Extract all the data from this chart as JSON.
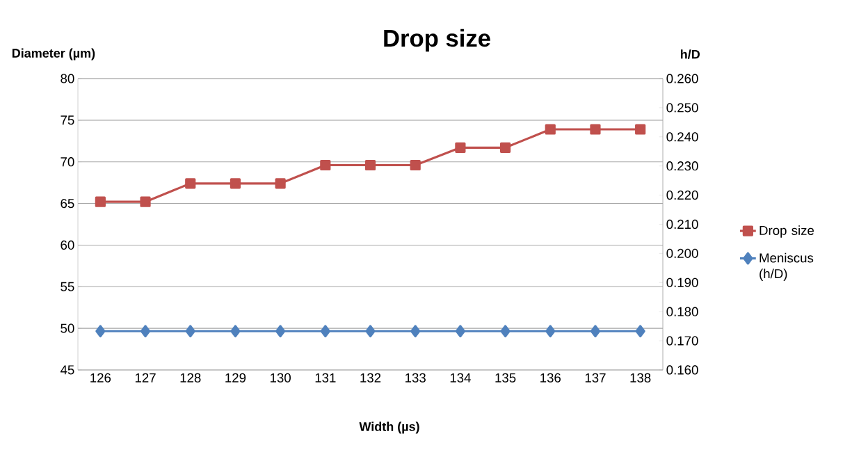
{
  "chart_data": {
    "type": "line",
    "title": "Drop size",
    "xlabel": "Width (µs)",
    "ylabel": "Diameter (µm)",
    "y2label": "h/D",
    "categories": [
      "126",
      "127",
      "128",
      "129",
      "130",
      "131",
      "132",
      "133",
      "134",
      "135",
      "136",
      "137",
      "138"
    ],
    "series": [
      {
        "name": "Drop size",
        "color": "#c0504d",
        "marker": "square",
        "values": [
          65.2,
          65.2,
          67.4,
          67.4,
          67.4,
          69.6,
          69.6,
          69.6,
          71.7,
          71.7,
          73.9,
          73.9,
          73.9
        ]
      },
      {
        "name": "Meniscus (h/D)",
        "color": "#4f81bd",
        "marker": "diamond",
        "axis": "y2",
        "values": [
          0.1733,
          0.1733,
          0.1733,
          0.1733,
          0.1733,
          0.1733,
          0.1733,
          0.1733,
          0.1733,
          0.1733,
          0.1733,
          0.1733,
          0.1733
        ]
      }
    ],
    "ylim": [
      45,
      80
    ],
    "yticks": [
      45,
      50,
      55,
      60,
      65,
      70,
      75,
      80
    ],
    "y2lim": [
      0.16,
      0.26
    ],
    "y2ticks": [
      {
        "value": 0.16,
        "label": "0.160"
      },
      {
        "value": 0.17,
        "label": "0.170"
      },
      {
        "value": 0.18,
        "label": "0.180"
      },
      {
        "value": 0.19,
        "label": "0.190"
      },
      {
        "value": 0.2,
        "label": "0.200"
      },
      {
        "value": 0.21,
        "label": "0.210"
      },
      {
        "value": 0.22,
        "label": "0.220"
      },
      {
        "value": 0.23,
        "label": "0.230"
      },
      {
        "value": 0.24,
        "label": "0.240"
      },
      {
        "value": 0.25,
        "label": "0.250"
      },
      {
        "value": 0.26,
        "label": "0.260"
      }
    ],
    "grid": "y",
    "legend": "right",
    "line_style": "solid"
  }
}
